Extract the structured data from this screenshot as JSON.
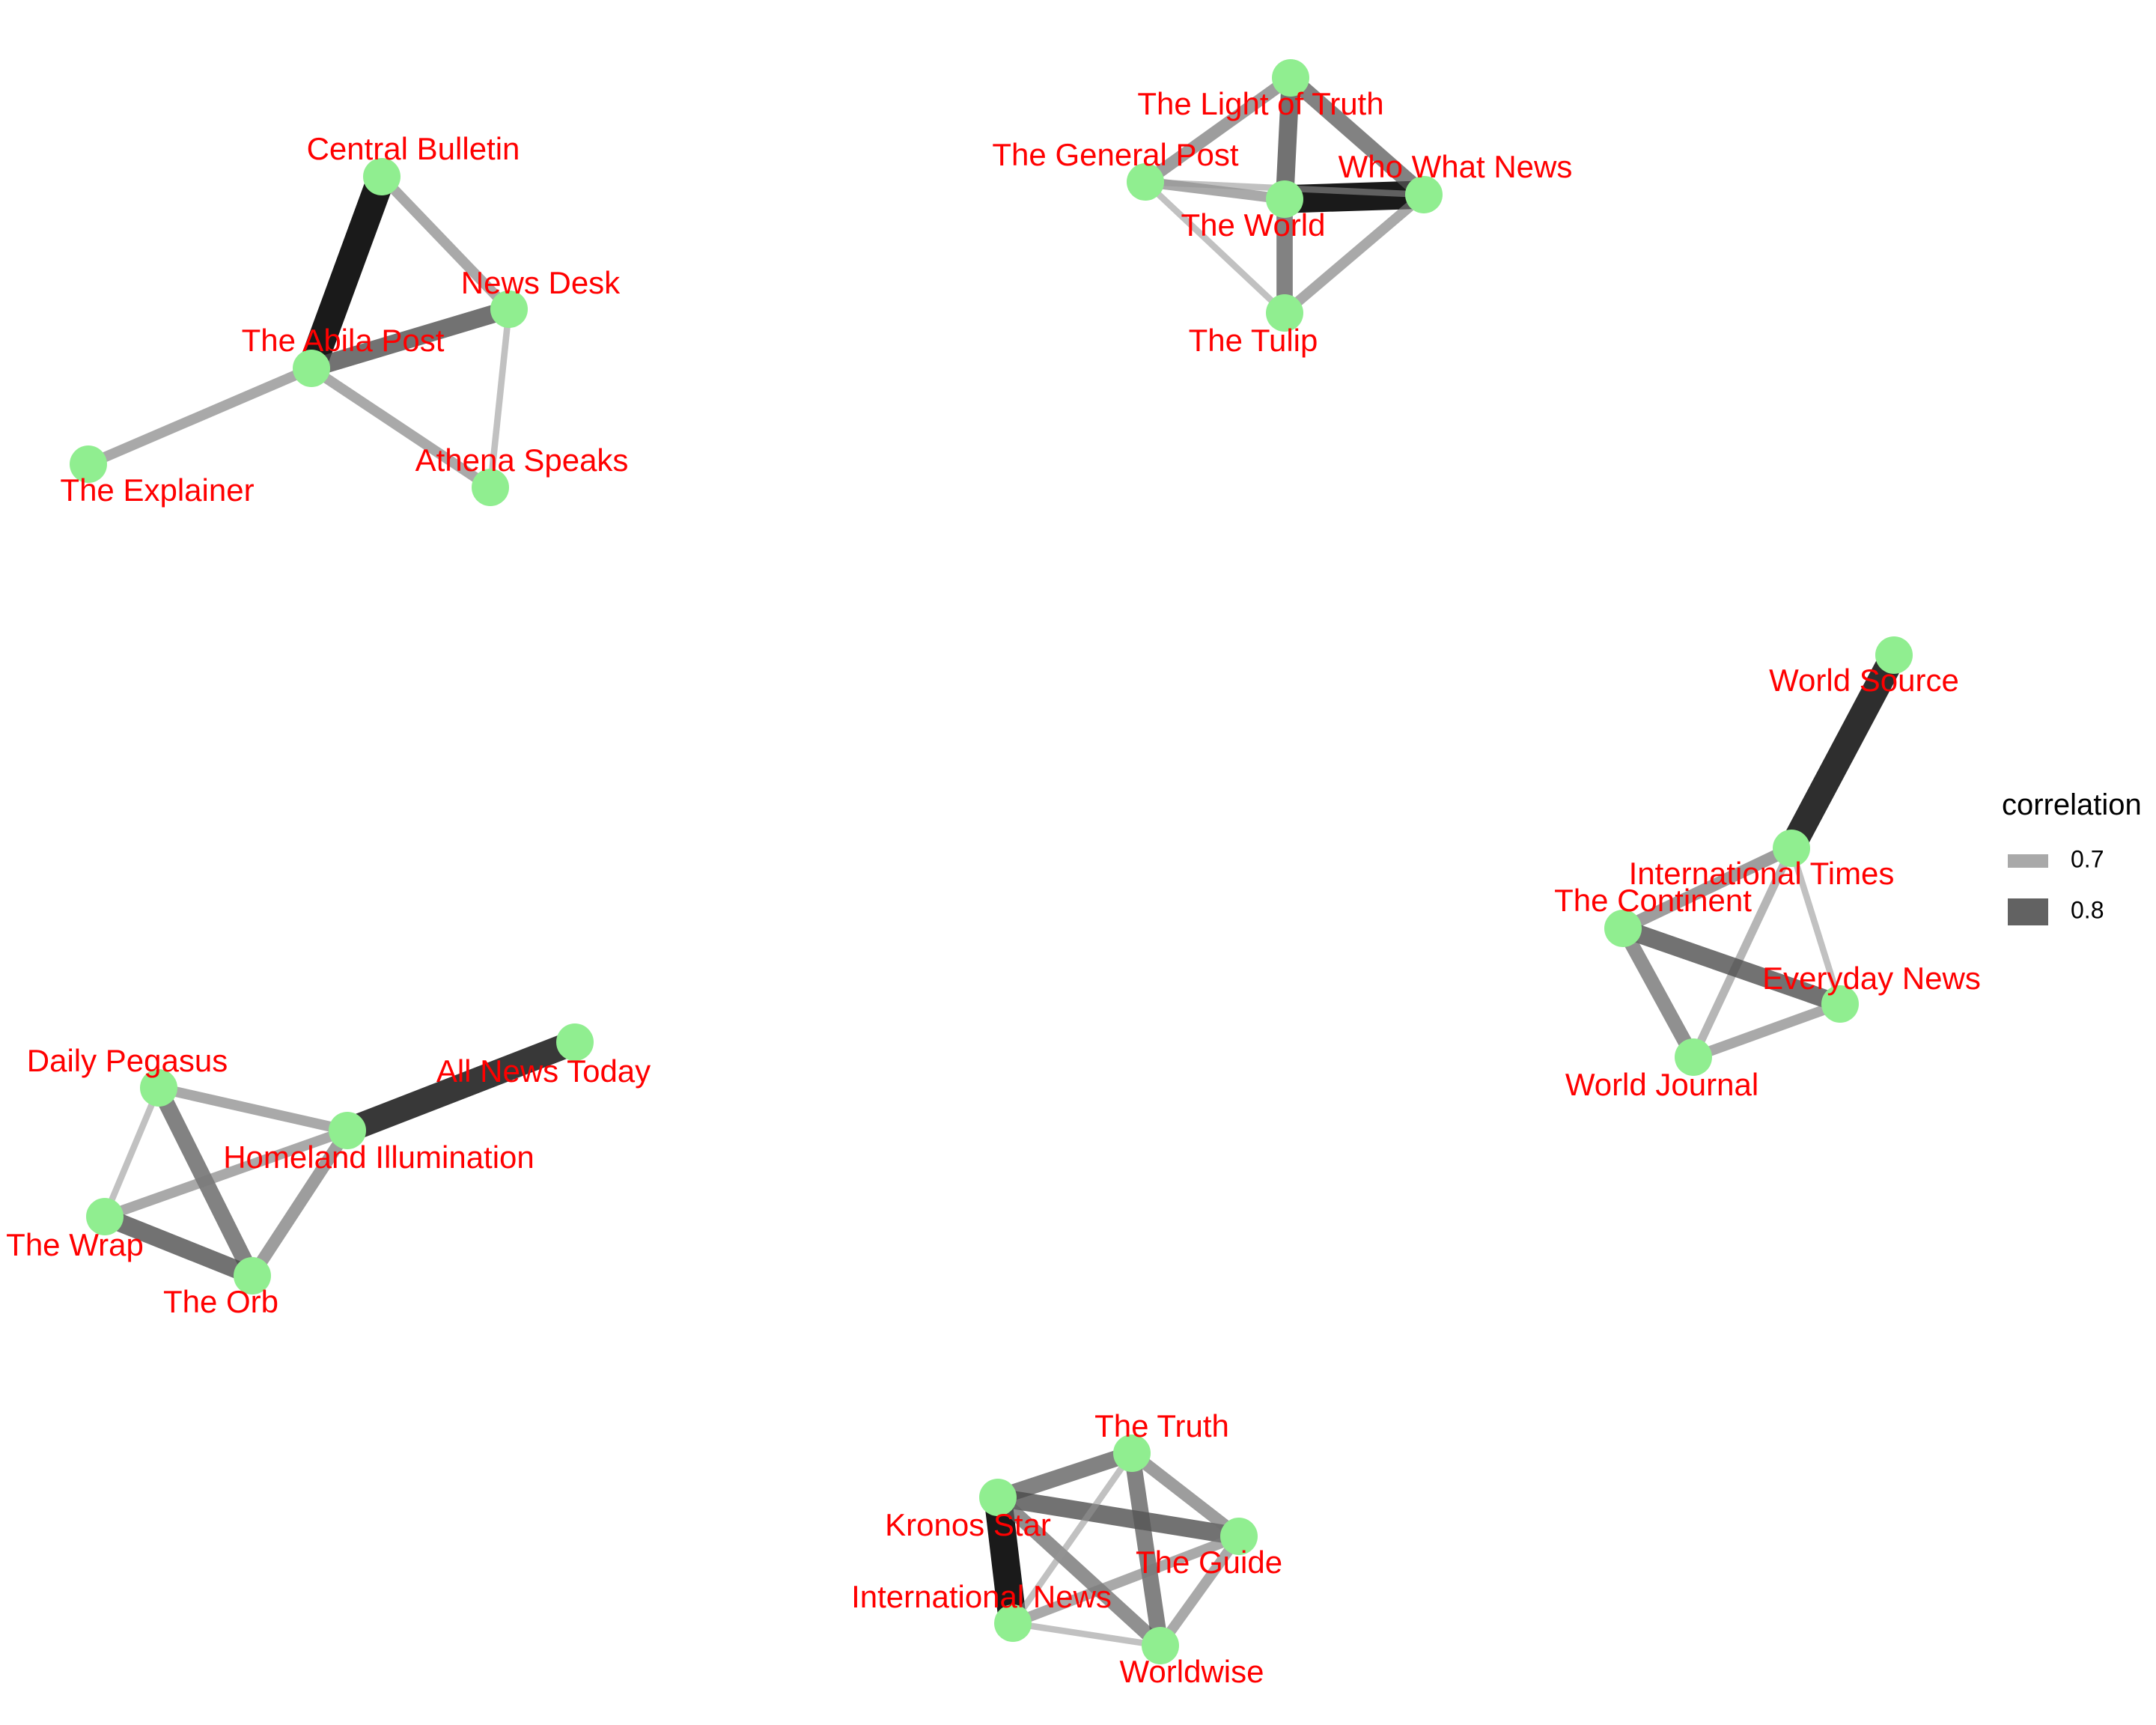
{
  "colors": {
    "node": "#90ee90",
    "label": "#ff0000",
    "edge_low": "#a0a0a0",
    "edge_high": "#000000"
  },
  "legend": {
    "title": "correlation",
    "entries": [
      {
        "label": "0.7",
        "value": 0.7
      },
      {
        "label": "0.8",
        "value": 0.8
      }
    ]
  },
  "nodes": [
    {
      "id": "central-bulletin",
      "name": "Central Bulletin"
    },
    {
      "id": "news-desk",
      "name": "News Desk"
    },
    {
      "id": "abila-post",
      "name": "The Abila Post"
    },
    {
      "id": "explainer",
      "name": "The Explainer"
    },
    {
      "id": "athena-speaks",
      "name": "Athena Speaks"
    },
    {
      "id": "light-of-truth",
      "name": "The Light of Truth"
    },
    {
      "id": "general-post",
      "name": "The General Post"
    },
    {
      "id": "who-what-news",
      "name": "Who What News"
    },
    {
      "id": "the-world",
      "name": "The World"
    },
    {
      "id": "the-tulip",
      "name": "The Tulip"
    },
    {
      "id": "world-source",
      "name": "World Source"
    },
    {
      "id": "international-times",
      "name": "International Times"
    },
    {
      "id": "the-continent",
      "name": "The Continent"
    },
    {
      "id": "everyday-news",
      "name": "Everyday News"
    },
    {
      "id": "world-journal",
      "name": "World Journal"
    },
    {
      "id": "all-news-today",
      "name": "All News Today"
    },
    {
      "id": "daily-pegasus",
      "name": "Daily Pegasus"
    },
    {
      "id": "homeland-illumination",
      "name": "Homeland Illumination"
    },
    {
      "id": "the-wrap",
      "name": "The Wrap"
    },
    {
      "id": "the-orb",
      "name": "The Orb"
    },
    {
      "id": "the-truth",
      "name": "The Truth"
    },
    {
      "id": "kronos-star",
      "name": "Kronos Star"
    },
    {
      "id": "the-guide",
      "name": "The Guide"
    },
    {
      "id": "international-news",
      "name": "International News"
    },
    {
      "id": "worldwise",
      "name": "Worldwise"
    }
  ],
  "edges": [
    {
      "source": "central-bulletin",
      "target": "abila-post",
      "correlation": 0.88
    },
    {
      "source": "central-bulletin",
      "target": "news-desk",
      "correlation": 0.7
    },
    {
      "source": "abila-post",
      "target": "news-desk",
      "correlation": 0.78
    },
    {
      "source": "abila-post",
      "target": "explainer",
      "correlation": 0.7
    },
    {
      "source": "abila-post",
      "target": "athena-speaks",
      "correlation": 0.7
    },
    {
      "source": "news-desk",
      "target": "athena-speaks",
      "correlation": 0.66
    },
    {
      "source": "the-world",
      "target": "who-what-news",
      "correlation": 0.88
    },
    {
      "source": "light-of-truth",
      "target": "the-world",
      "correlation": 0.78
    },
    {
      "source": "light-of-truth",
      "target": "who-what-news",
      "correlation": 0.76
    },
    {
      "source": "light-of-truth",
      "target": "general-post",
      "correlation": 0.72
    },
    {
      "source": "general-post",
      "target": "the-world",
      "correlation": 0.7
    },
    {
      "source": "general-post",
      "target": "who-what-news",
      "correlation": 0.66
    },
    {
      "source": "general-post",
      "target": "the-tulip",
      "correlation": 0.66
    },
    {
      "source": "the-world",
      "target": "the-tulip",
      "correlation": 0.76
    },
    {
      "source": "who-what-news",
      "target": "the-tulip",
      "correlation": 0.7
    },
    {
      "source": "world-source",
      "target": "international-times",
      "correlation": 0.86
    },
    {
      "source": "international-times",
      "target": "the-continent",
      "correlation": 0.72
    },
    {
      "source": "international-times",
      "target": "everyday-news",
      "correlation": 0.66
    },
    {
      "source": "international-times",
      "target": "world-journal",
      "correlation": 0.68
    },
    {
      "source": "the-continent",
      "target": "everyday-news",
      "correlation": 0.78
    },
    {
      "source": "the-continent",
      "target": "world-journal",
      "correlation": 0.74
    },
    {
      "source": "everyday-news",
      "target": "world-journal",
      "correlation": 0.7
    },
    {
      "source": "homeland-illumination",
      "target": "all-news-today",
      "correlation": 0.85
    },
    {
      "source": "daily-pegasus",
      "target": "homeland-illumination",
      "correlation": 0.7
    },
    {
      "source": "daily-pegasus",
      "target": "the-orb",
      "correlation": 0.76
    },
    {
      "source": "daily-pegasus",
      "target": "the-wrap",
      "correlation": 0.66
    },
    {
      "source": "the-wrap",
      "target": "homeland-illumination",
      "correlation": 0.7
    },
    {
      "source": "the-wrap",
      "target": "the-orb",
      "correlation": 0.78
    },
    {
      "source": "homeland-illumination",
      "target": "the-orb",
      "correlation": 0.72
    },
    {
      "source": "kronos-star",
      "target": "international-news",
      "correlation": 0.88
    },
    {
      "source": "kronos-star",
      "target": "the-truth",
      "correlation": 0.76
    },
    {
      "source": "kronos-star",
      "target": "the-guide",
      "correlation": 0.78
    },
    {
      "source": "kronos-star",
      "target": "worldwise",
      "correlation": 0.74
    },
    {
      "source": "the-truth",
      "target": "the-guide",
      "correlation": 0.72
    },
    {
      "source": "the-truth",
      "target": "international-news",
      "correlation": 0.66
    },
    {
      "source": "the-truth",
      "target": "worldwise",
      "correlation": 0.76
    },
    {
      "source": "the-guide",
      "target": "international-news",
      "correlation": 0.7
    },
    {
      "source": "the-guide",
      "target": "worldwise",
      "correlation": 0.7
    },
    {
      "source": "international-news",
      "target": "worldwise",
      "correlation": 0.66
    }
  ]
}
